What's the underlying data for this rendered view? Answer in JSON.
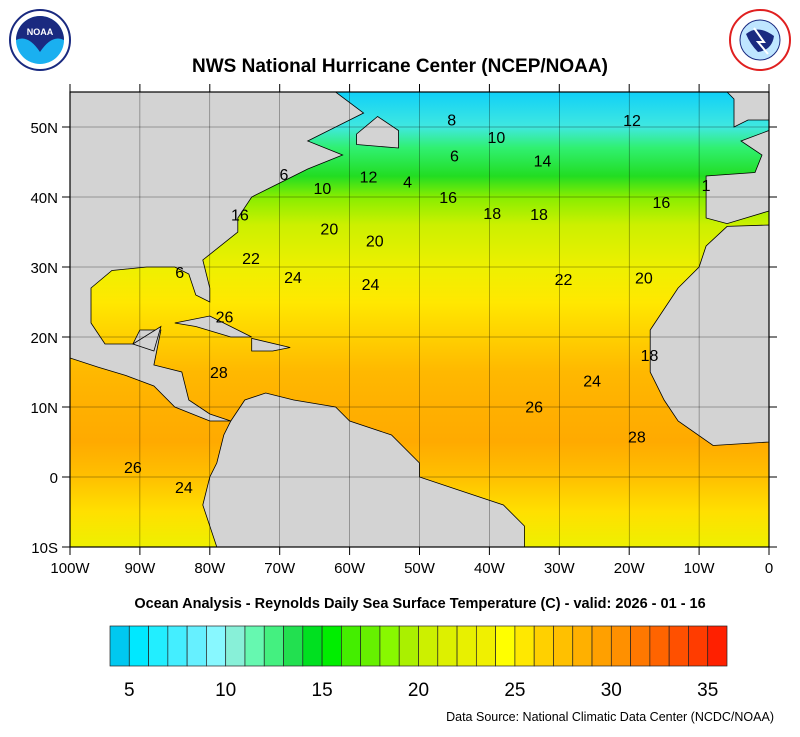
{
  "header": {
    "title": "NWS National Hurricane Center (NCEP/NOAA)",
    "left_logo": "NOAA",
    "right_logo": "NATIONAL WEATHER SERVICE"
  },
  "map": {
    "lon_range": [
      -100,
      0
    ],
    "lat_range": [
      -10,
      55
    ],
    "lon_ticks": [
      {
        "v": -100,
        "label": "100W"
      },
      {
        "v": -90,
        "label": "90W"
      },
      {
        "v": -80,
        "label": "80W"
      },
      {
        "v": -70,
        "label": "70W"
      },
      {
        "v": -60,
        "label": "60W"
      },
      {
        "v": -50,
        "label": "50W"
      },
      {
        "v": -40,
        "label": "40W"
      },
      {
        "v": -30,
        "label": "30W"
      },
      {
        "v": -20,
        "label": "20W"
      },
      {
        "v": -10,
        "label": "10W"
      },
      {
        "v": 0,
        "label": "0"
      }
    ],
    "lat_ticks": [
      {
        "v": 50,
        "label": "50N"
      },
      {
        "v": 40,
        "label": "40N"
      },
      {
        "v": 30,
        "label": "30N"
      },
      {
        "v": 20,
        "label": "20N"
      },
      {
        "v": 10,
        "label": "10N"
      },
      {
        "v": 0,
        "label": "0"
      },
      {
        "v": -10,
        "label": "10S"
      }
    ],
    "land_color": "#d3d3d3",
    "sst_by_latitude": [
      [
        55,
        "#10d0f8"
      ],
      [
        50,
        "#40e8e0"
      ],
      [
        47,
        "#30f070"
      ],
      [
        43,
        "#22dd22"
      ],
      [
        40,
        "#88ee00"
      ],
      [
        36,
        "#ccf000"
      ],
      [
        30,
        "#eef000"
      ],
      [
        25,
        "#ffe800"
      ],
      [
        20,
        "#ffd000"
      ],
      [
        15,
        "#ffb800"
      ],
      [
        10,
        "#ffb000"
      ],
      [
        5,
        "#ffaa00"
      ],
      [
        0,
        "#ffc000"
      ],
      [
        -5,
        "#ffe000"
      ],
      [
        -10,
        "#eef000"
      ]
    ],
    "contour_labels": [
      {
        "t": "8",
        "lon": -45.4,
        "lat": 51.1
      },
      {
        "t": "10",
        "lon": -39,
        "lat": 48.6
      },
      {
        "t": "12",
        "lon": -19.6,
        "lat": 51
      },
      {
        "t": "6",
        "lon": -45,
        "lat": 45.9
      },
      {
        "t": "14",
        "lon": -32.4,
        "lat": 45.2
      },
      {
        "t": "6",
        "lon": -69.4,
        "lat": 43.3
      },
      {
        "t": "12",
        "lon": -57.3,
        "lat": 42.9
      },
      {
        "t": "4",
        "lon": -51.7,
        "lat": 42.2
      },
      {
        "t": "10",
        "lon": -63.9,
        "lat": 41.3
      },
      {
        "t": "16",
        "lon": -45.9,
        "lat": 40
      },
      {
        "t": "1",
        "lon": -9,
        "lat": 41.7
      },
      {
        "t": "16",
        "lon": -15.4,
        "lat": 39.3
      },
      {
        "t": "18",
        "lon": -39.6,
        "lat": 37.7
      },
      {
        "t": "18",
        "lon": -32.9,
        "lat": 37.6
      },
      {
        "t": "16",
        "lon": -75.7,
        "lat": 37.5
      },
      {
        "t": "20",
        "lon": -62.9,
        "lat": 35.5
      },
      {
        "t": "20",
        "lon": -56.4,
        "lat": 33.8
      },
      {
        "t": "22",
        "lon": -74.1,
        "lat": 31.3
      },
      {
        "t": "24",
        "lon": -68.1,
        "lat": 28.6
      },
      {
        "t": "24",
        "lon": -57,
        "lat": 27.6
      },
      {
        "t": "22",
        "lon": -29.4,
        "lat": 28.3
      },
      {
        "t": "20",
        "lon": -17.9,
        "lat": 28.5
      },
      {
        "t": "6",
        "lon": -84.3,
        "lat": 29.3
      },
      {
        "t": "26",
        "lon": -77.9,
        "lat": 22.9
      },
      {
        "t": "18",
        "lon": -17.1,
        "lat": 17.4
      },
      {
        "t": "28",
        "lon": -78.7,
        "lat": 15
      },
      {
        "t": "24",
        "lon": -25.3,
        "lat": 13.8
      },
      {
        "t": "26",
        "lon": -33.6,
        "lat": 10.1
      },
      {
        "t": "28",
        "lon": -18.9,
        "lat": 5.8
      },
      {
        "t": "26",
        "lon": -91,
        "lat": 1.4
      },
      {
        "t": "24",
        "lon": -83.7,
        "lat": -1.4
      }
    ]
  },
  "subtitle": "Ocean Analysis - Reynolds Daily Sea Surface Temperature (C) - valid: 2026 - 01 - 16",
  "colorbar": {
    "min": 4,
    "max": 36,
    "colors": [
      "#00c8f0",
      "#00e8ff",
      "#22eeff",
      "#44eeff",
      "#66f0ff",
      "#88f8ff",
      "#88f0d8",
      "#66f8b0",
      "#44f080",
      "#22e050",
      "#00e020",
      "#00ee00",
      "#44ee00",
      "#66f000",
      "#88f800",
      "#aaf000",
      "#ccf000",
      "#ddf000",
      "#e8f000",
      "#f0f000",
      "#ffff00",
      "#ffe800",
      "#ffd000",
      "#ffc000",
      "#ffb000",
      "#ffa000",
      "#ff9000",
      "#ff7800",
      "#ff6400",
      "#ff5000",
      "#ff3c00",
      "#ff2000"
    ],
    "ticks": [
      5,
      10,
      15,
      20,
      25,
      30,
      35
    ]
  },
  "footer": {
    "source": "Data Source: National Climatic Data Center (NCDC/NOAA)"
  }
}
